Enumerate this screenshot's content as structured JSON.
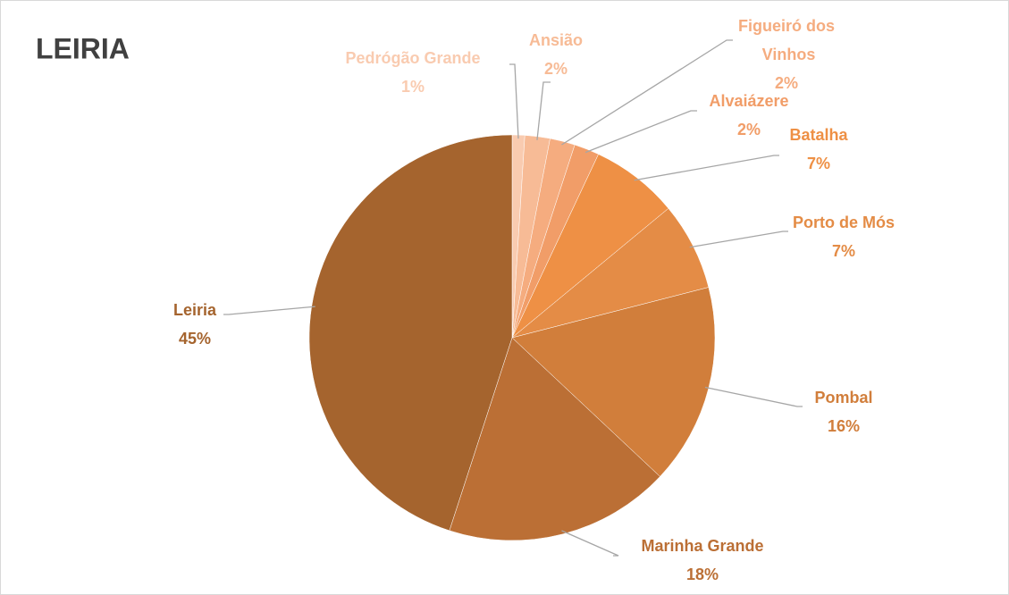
{
  "chart_data": {
    "type": "pie",
    "title": "LEIRIA",
    "categories": [
      "Pedrógão Grande",
      "Ansião",
      "Figueiró dos Vinhos",
      "Alvaiázere",
      "Batalha",
      "Porto de Mós",
      "Pombal",
      "Marinha Grande",
      "Leiria"
    ],
    "values": [
      1,
      2,
      2,
      2,
      7,
      7,
      16,
      18,
      45
    ],
    "value_labels": [
      "1%",
      "2%",
      "2%",
      "2%",
      "7%",
      "7%",
      "16%",
      "18%",
      "45%"
    ],
    "colors": [
      "#f9cbb0",
      "#f7bb96",
      "#f5ac7f",
      "#f19d68",
      "#ee9045",
      "#e48c46",
      "#d17e3b",
      "#bb6f35",
      "#a5642e"
    ]
  }
}
